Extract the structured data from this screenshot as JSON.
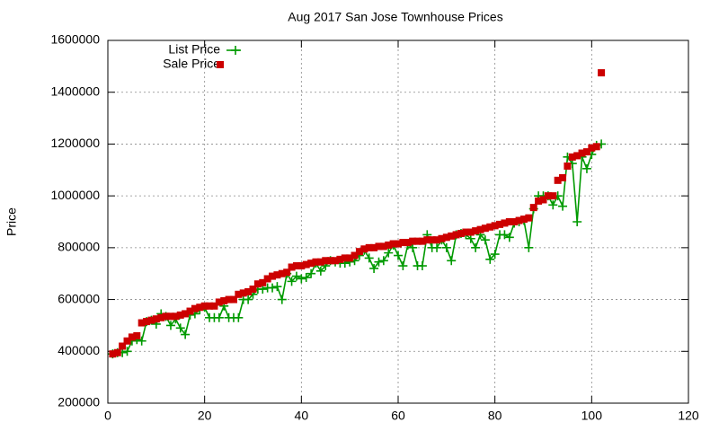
{
  "chart_data": {
    "type": "scatter",
    "title": "Aug 2017 San Jose Townhouse Prices",
    "y_label": "Price",
    "xlim": [
      0,
      120
    ],
    "xticks": [
      0,
      20,
      40,
      60,
      80,
      100,
      120
    ],
    "ylim": [
      200000,
      1600000
    ],
    "yticks": [
      200000,
      400000,
      600000,
      800000,
      1000000,
      1200000,
      1400000,
      1600000
    ],
    "grid": true,
    "legend": "top-left",
    "x": [
      1,
      2,
      3,
      4,
      5,
      6,
      7,
      8,
      9,
      10,
      11,
      12,
      13,
      14,
      15,
      16,
      17,
      18,
      19,
      20,
      21,
      22,
      23,
      24,
      25,
      26,
      27,
      28,
      29,
      30,
      31,
      32,
      33,
      34,
      35,
      36,
      37,
      38,
      39,
      40,
      41,
      42,
      43,
      44,
      45,
      46,
      47,
      48,
      49,
      50,
      51,
      52,
      53,
      54,
      55,
      56,
      57,
      58,
      59,
      60,
      61,
      62,
      63,
      64,
      65,
      66,
      67,
      68,
      69,
      70,
      71,
      72,
      73,
      74,
      75,
      76,
      77,
      78,
      79,
      80,
      81,
      82,
      83,
      84,
      85,
      86,
      87,
      88,
      89,
      90,
      91,
      92,
      93,
      94,
      95,
      96,
      97,
      98,
      99,
      100,
      101,
      102
    ],
    "series": [
      {
        "name": "List Price",
        "color": "#009a00",
        "style": "linespoints",
        "values": [
          390000,
          395000,
          395000,
          400000,
          440000,
          445000,
          440000,
          515000,
          520000,
          505000,
          545000,
          535000,
          500000,
          525000,
          490000,
          465000,
          540000,
          545000,
          560000,
          570000,
          530000,
          530000,
          530000,
          575000,
          530000,
          530000,
          530000,
          600000,
          600000,
          620000,
          640000,
          640000,
          645000,
          645000,
          650000,
          600000,
          700000,
          670000,
          690000,
          680000,
          685000,
          700000,
          740000,
          710000,
          730000,
          750000,
          745000,
          740000,
          740000,
          745000,
          750000,
          770000,
          790000,
          760000,
          720000,
          745000,
          750000,
          780000,
          810000,
          770000,
          730000,
          810000,
          800000,
          730000,
          730000,
          850000,
          800000,
          800000,
          830000,
          800000,
          750000,
          850000,
          855000,
          850000,
          835000,
          800000,
          850000,
          830000,
          755000,
          775000,
          850000,
          850000,
          840000,
          895000,
          900000,
          905000,
          800000,
          950000,
          1000000,
          1000000,
          1000000,
          965000,
          1000000,
          960000,
          1150000,
          1125000,
          900000,
          1150000,
          1105000,
          1160000,
          1195000,
          1200000
        ]
      },
      {
        "name": "Sale Price",
        "color": "#cc0000",
        "style": "points",
        "values": [
          390000,
          395000,
          420000,
          440000,
          455000,
          460000,
          510000,
          515000,
          520000,
          525000,
          530000,
          535000,
          535000,
          535000,
          540000,
          545000,
          555000,
          565000,
          570000,
          575000,
          575000,
          575000,
          590000,
          595000,
          600000,
          600000,
          620000,
          625000,
          630000,
          640000,
          660000,
          665000,
          680000,
          690000,
          695000,
          700000,
          705000,
          725000,
          730000,
          730000,
          735000,
          740000,
          745000,
          745000,
          750000,
          750000,
          750000,
          755000,
          760000,
          760000,
          770000,
          785000,
          795000,
          800000,
          800000,
          805000,
          805000,
          810000,
          815000,
          815000,
          820000,
          820000,
          825000,
          825000,
          825000,
          830000,
          830000,
          830000,
          835000,
          840000,
          845000,
          850000,
          855000,
          860000,
          860000,
          865000,
          870000,
          875000,
          880000,
          885000,
          890000,
          895000,
          900000,
          900000,
          905000,
          910000,
          915000,
          955000,
          980000,
          985000,
          1000000,
          1000000,
          1060000,
          1070000,
          1115000,
          1150000,
          1155000,
          1165000,
          1170000,
          1185000,
          1190000,
          1475000
        ]
      }
    ]
  }
}
